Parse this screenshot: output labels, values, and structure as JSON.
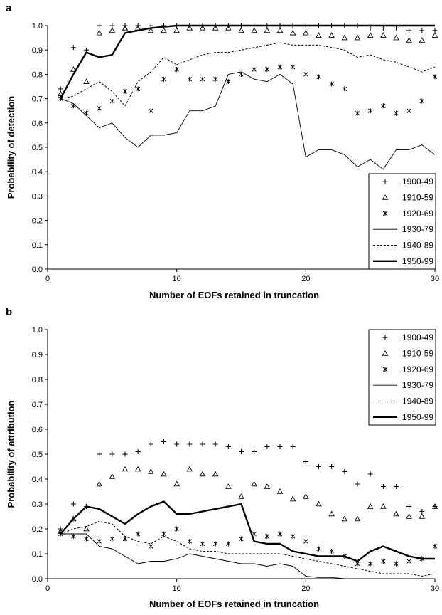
{
  "chart_data": [
    {
      "type": "line",
      "panel_label": "a",
      "xlabel": "Number of EOFs retained in truncation",
      "ylabel": "Probability of detection",
      "xlim": [
        0,
        30
      ],
      "ylim": [
        0,
        1.0
      ],
      "xticks": [
        "0",
        "10",
        "20",
        "30"
      ],
      "yticks": [
        "0.0",
        "0.1",
        "0.2",
        "0.3",
        "0.4",
        "0.5",
        "0.6",
        "0.7",
        "0.8",
        "0.9",
        "1.0"
      ],
      "legend_position": "bottom-right",
      "x": [
        1,
        2,
        3,
        4,
        5,
        6,
        7,
        8,
        9,
        10,
        11,
        12,
        13,
        14,
        15,
        16,
        17,
        18,
        19,
        20,
        21,
        22,
        23,
        24,
        25,
        26,
        27,
        28,
        29,
        30
      ],
      "series": [
        {
          "name": "1900-49",
          "marker": "plus",
          "color": "#000000",
          "values": [
            0.74,
            0.91,
            0.9,
            1.0,
            1.0,
            1.0,
            1.0,
            1.0,
            1.0,
            1.0,
            1.0,
            1.0,
            1.0,
            1.0,
            1.0,
            1.0,
            1.0,
            1.0,
            1.0,
            1.0,
            1.0,
            1.0,
            1.0,
            1.0,
            0.99,
            0.99,
            0.99,
            0.98,
            0.98,
            0.98
          ]
        },
        {
          "name": "1910-59",
          "marker": "triangle",
          "color": "#000000",
          "values": [
            0.72,
            0.82,
            0.77,
            0.97,
            0.98,
            0.99,
            0.99,
            0.98,
            0.98,
            0.98,
            0.99,
            0.99,
            0.99,
            0.99,
            0.98,
            0.98,
            0.98,
            0.98,
            0.97,
            0.97,
            0.96,
            0.96,
            0.95,
            0.95,
            0.96,
            0.96,
            0.95,
            0.94,
            0.94,
            0.96
          ]
        },
        {
          "name": "1920-69",
          "marker": "asterisk",
          "color": "#000000",
          "values": [
            0.7,
            0.67,
            0.64,
            0.66,
            0.69,
            0.73,
            0.74,
            0.65,
            0.78,
            0.82,
            0.78,
            0.78,
            0.78,
            0.77,
            0.8,
            0.82,
            0.82,
            0.83,
            0.83,
            0.8,
            0.79,
            0.76,
            0.74,
            0.64,
            0.65,
            0.67,
            0.64,
            0.65,
            0.69,
            0.79
          ]
        },
        {
          "name": "1930-79",
          "line": "thin",
          "color": "#000000",
          "values": [
            0.7,
            0.68,
            0.63,
            0.58,
            0.6,
            0.54,
            0.5,
            0.55,
            0.55,
            0.56,
            0.65,
            0.65,
            0.67,
            0.8,
            0.81,
            0.78,
            0.77,
            0.8,
            0.76,
            0.46,
            0.49,
            0.49,
            0.47,
            0.42,
            0.45,
            0.41,
            0.49,
            0.49,
            0.51,
            0.47
          ]
        },
        {
          "name": "1940-89",
          "line": "dashed",
          "color": "#000000",
          "values": [
            0.7,
            0.71,
            0.74,
            0.77,
            0.73,
            0.67,
            0.77,
            0.81,
            0.87,
            0.84,
            0.86,
            0.88,
            0.89,
            0.89,
            0.9,
            0.91,
            0.92,
            0.93,
            0.92,
            0.92,
            0.92,
            0.91,
            0.9,
            0.87,
            0.88,
            0.86,
            0.85,
            0.83,
            0.81,
            0.83
          ]
        },
        {
          "name": "1950-99",
          "line": "thick",
          "color": "#000000",
          "values": [
            0.7,
            0.8,
            0.89,
            0.87,
            0.88,
            0.97,
            0.98,
            0.99,
            0.995,
            1.0,
            1.0,
            1.0,
            1.0,
            1.0,
            1.0,
            1.0,
            1.0,
            1.0,
            1.0,
            1.0,
            1.0,
            1.0,
            1.0,
            1.0,
            1.0,
            1.0,
            1.0,
            1.0,
            1.0,
            1.0
          ]
        }
      ]
    },
    {
      "type": "line",
      "panel_label": "b",
      "xlabel": "Number of EOFs retained in truncation",
      "ylabel": "Probability of attribution",
      "xlim": [
        0,
        30
      ],
      "ylim": [
        0,
        1.0
      ],
      "xticks": [
        "0",
        "10",
        "20",
        "30"
      ],
      "yticks": [
        "0.0",
        "0.1",
        "0.2",
        "0.3",
        "0.4",
        "0.5",
        "0.6",
        "0.7",
        "0.8",
        "0.9",
        "1.0"
      ],
      "legend_position": "top-right",
      "x": [
        1,
        2,
        3,
        4,
        5,
        6,
        7,
        8,
        9,
        10,
        11,
        12,
        13,
        14,
        15,
        16,
        17,
        18,
        19,
        20,
        21,
        22,
        23,
        24,
        25,
        26,
        27,
        28,
        29,
        30
      ],
      "series": [
        {
          "name": "1900-49",
          "marker": "plus",
          "color": "#000000",
          "values": [
            0.2,
            0.3,
            0.29,
            0.5,
            0.5,
            0.5,
            0.51,
            0.54,
            0.55,
            0.54,
            0.54,
            0.54,
            0.54,
            0.53,
            0.51,
            0.51,
            0.53,
            0.53,
            0.53,
            0.47,
            0.45,
            0.45,
            0.43,
            0.38,
            0.42,
            0.37,
            0.37,
            0.29,
            0.27,
            0.29
          ]
        },
        {
          "name": "1910-59",
          "marker": "triangle",
          "color": "#000000",
          "values": [
            0.19,
            0.24,
            0.2,
            0.38,
            0.41,
            0.44,
            0.44,
            0.43,
            0.42,
            0.38,
            0.44,
            0.42,
            0.42,
            0.37,
            0.33,
            0.38,
            0.37,
            0.35,
            0.32,
            0.33,
            0.3,
            0.26,
            0.24,
            0.24,
            0.29,
            0.29,
            0.26,
            0.25,
            0.25,
            0.29
          ]
        },
        {
          "name": "1920-69",
          "marker": "asterisk",
          "color": "#000000",
          "values": [
            0.18,
            0.17,
            0.16,
            0.15,
            0.16,
            0.16,
            0.18,
            0.13,
            0.18,
            0.2,
            0.15,
            0.14,
            0.14,
            0.14,
            0.16,
            0.18,
            0.17,
            0.18,
            0.17,
            0.15,
            0.12,
            0.11,
            0.09,
            0.06,
            0.06,
            0.07,
            0.06,
            0.07,
            0.08,
            0.13
          ]
        },
        {
          "name": "1930-79",
          "line": "thin",
          "color": "#000000",
          "values": [
            0.18,
            0.18,
            0.18,
            0.13,
            0.12,
            0.09,
            0.06,
            0.07,
            0.07,
            0.08,
            0.1,
            0.09,
            0.08,
            0.07,
            0.06,
            0.06,
            0.05,
            0.06,
            0.05,
            0.01,
            0.005,
            0.005,
            0.0,
            0.0,
            0.0,
            0.0,
            0.0,
            0.0,
            0.0,
            0.0
          ]
        },
        {
          "name": "1940-89",
          "line": "dashed",
          "color": "#000000",
          "values": [
            0.18,
            0.2,
            0.21,
            0.23,
            0.22,
            0.17,
            0.15,
            0.14,
            0.17,
            0.15,
            0.12,
            0.11,
            0.11,
            0.1,
            0.1,
            0.1,
            0.1,
            0.1,
            0.09,
            0.08,
            0.07,
            0.06,
            0.05,
            0.04,
            0.03,
            0.02,
            0.02,
            0.02,
            0.01,
            0.02
          ]
        },
        {
          "name": "1950-99",
          "line": "thick",
          "color": "#000000",
          "values": [
            0.18,
            0.24,
            0.29,
            0.28,
            0.25,
            0.22,
            0.26,
            0.29,
            0.31,
            0.26,
            0.26,
            0.27,
            0.28,
            0.29,
            0.3,
            0.15,
            0.14,
            0.14,
            0.11,
            0.1,
            0.09,
            0.09,
            0.09,
            0.07,
            0.11,
            0.13,
            0.11,
            0.09,
            0.08,
            0.08
          ]
        }
      ]
    }
  ]
}
